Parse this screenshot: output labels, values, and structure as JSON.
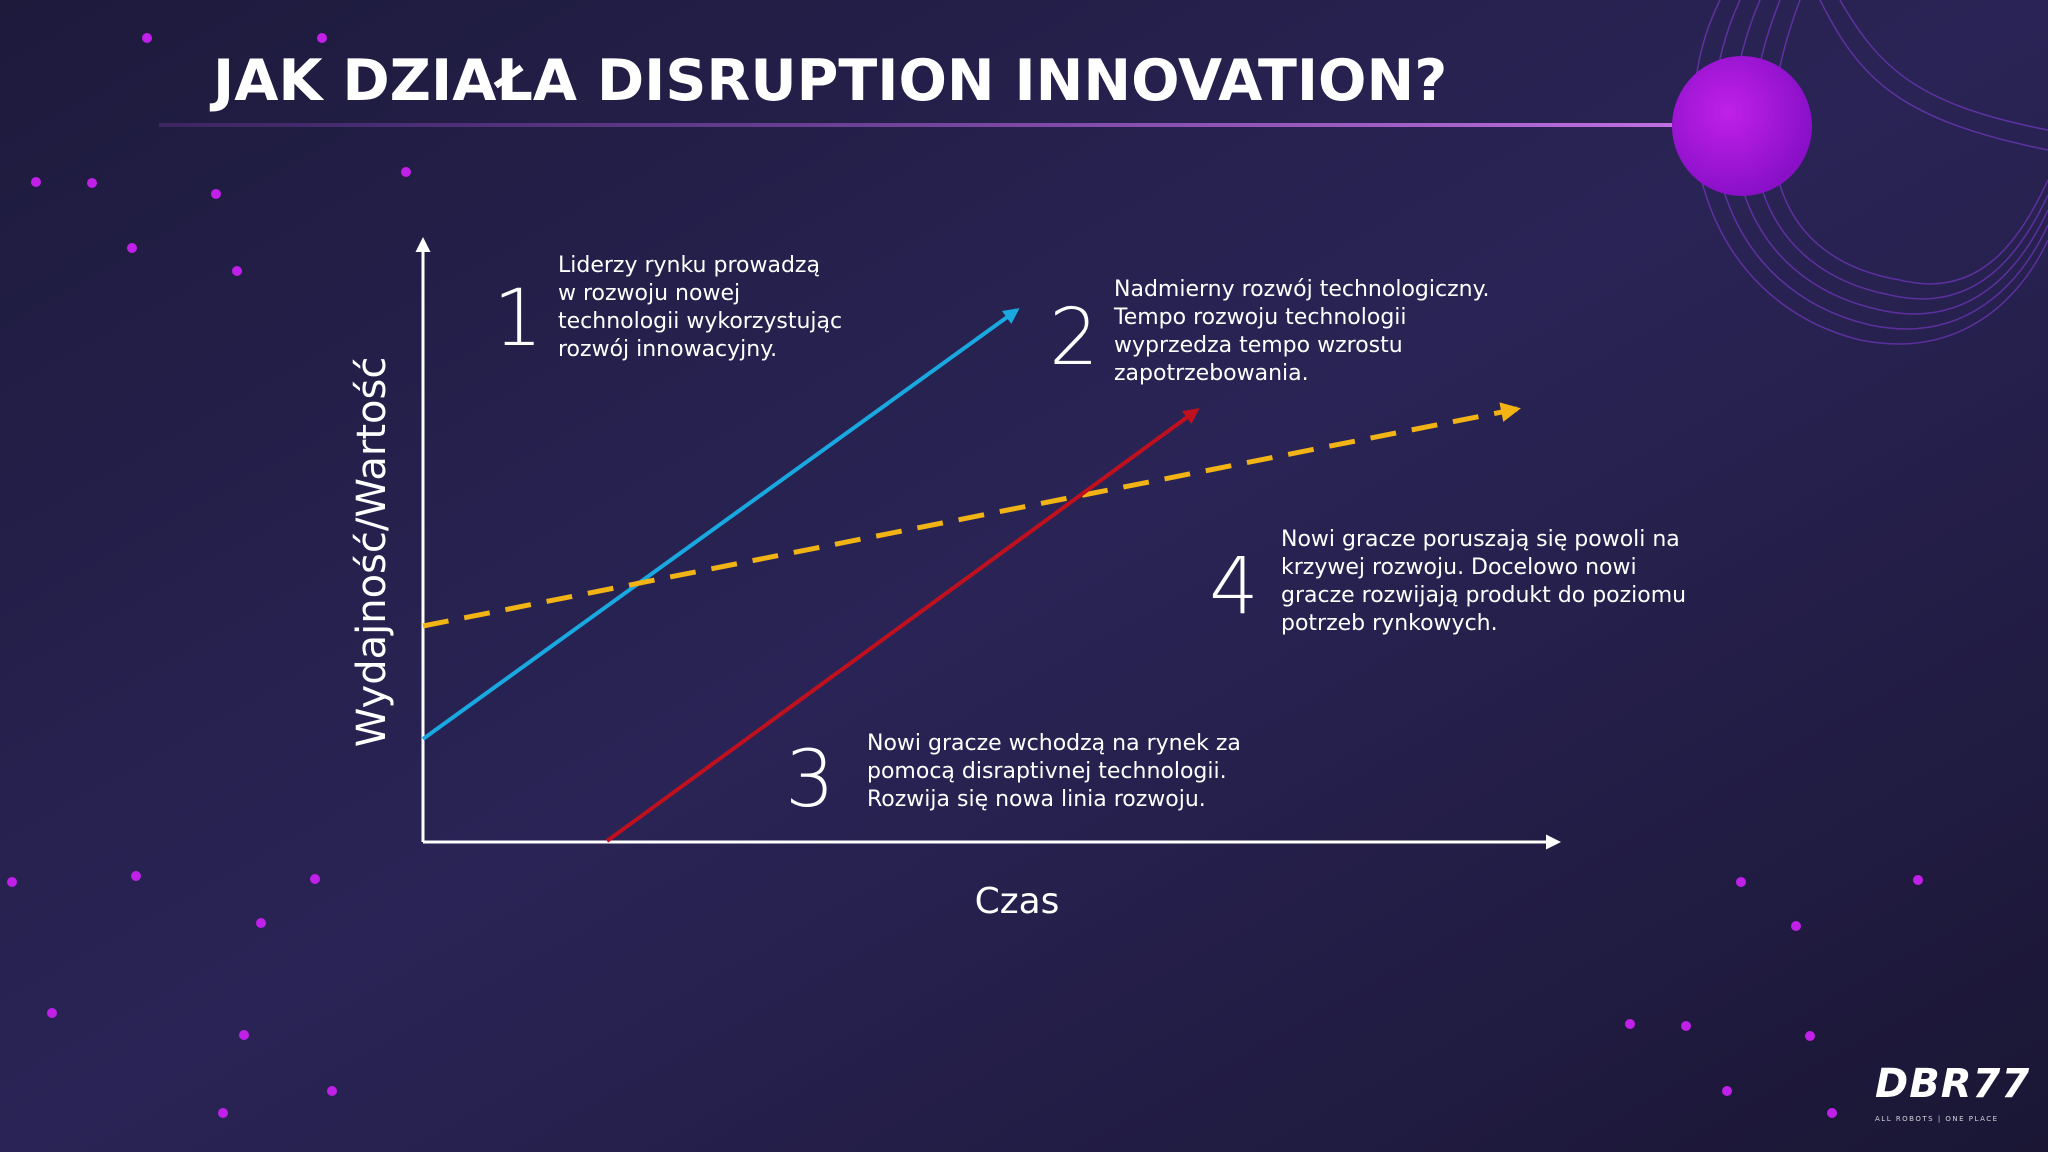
{
  "header": {
    "title": "JAK DZIAŁA DISRUPTION INNOVATION?"
  },
  "diagram": {
    "y_axis_label": "Wydajność/Wartość",
    "x_axis_label": "Czas",
    "annotations": [
      {
        "number": "1",
        "lines": [
          "Liderzy rynku prowadzą",
          "w rozwoju nowej",
          "technologii wykorzystując",
          "rozwój innowacyjny."
        ]
      },
      {
        "number": "2",
        "lines": [
          "Nadmierny rozwój technologiczny.",
          "Tempo rozwoju technologii",
          "wyprzedza tempo wzrostu",
          "zapotrzebowania."
        ]
      },
      {
        "number": "3",
        "lines": [
          "Nowi gracze wchodzą na rynek za",
          "pomocą disraptivnej technologii.",
          "Rozwija się nowa linia rozwoju."
        ]
      },
      {
        "number": "4",
        "lines": [
          "Nowi gracze poruszają się powoli na",
          "krzywej rozwoju. Docelowo nowi",
          "gracze rozwijają produkt do poziomu",
          "potrzeb rynkowych."
        ]
      }
    ]
  },
  "logo": {
    "name": "DBR77",
    "tagline": "ALL ROBOTS | ONE PLACE"
  }
}
